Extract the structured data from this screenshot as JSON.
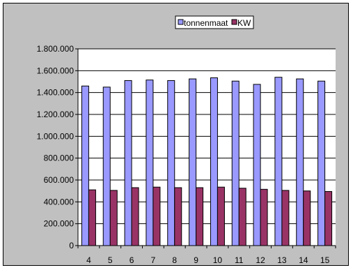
{
  "chart_data": {
    "type": "bar",
    "categories": [
      "4",
      "5",
      "6",
      "7",
      "8",
      "9",
      "10",
      "11",
      "12",
      "13",
      "14",
      "15"
    ],
    "series": [
      {
        "name": "tonnenmaat",
        "color": "#9999ff",
        "values": [
          1460000,
          1450000,
          1510000,
          1515000,
          1510000,
          1525000,
          1535000,
          1505000,
          1475000,
          1540000,
          1525000,
          1505000
        ]
      },
      {
        "name": "KW",
        "color": "#993366",
        "values": [
          510000,
          505000,
          530000,
          535000,
          530000,
          530000,
          535000,
          525000,
          515000,
          505000,
          500000,
          495000
        ]
      }
    ],
    "y_ticks": [
      "0",
      "200.000",
      "400.000",
      "600.000",
      "800.000",
      "1.000.000",
      "1.200.000",
      "1.400.000",
      "1.600.000",
      "1.800.000"
    ],
    "ylim": [
      0,
      1800000
    ],
    "grid": true,
    "legend_position": "top"
  }
}
